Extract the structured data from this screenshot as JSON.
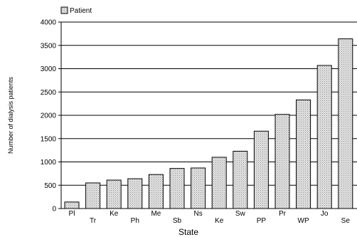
{
  "chart_data": {
    "type": "bar",
    "categories": [
      "Pl",
      "Tr",
      "Ke",
      "Ph",
      "Me",
      "Sb",
      "Ns",
      "Ke",
      "Sw",
      "PP",
      "Pr",
      "WP",
      "Jo",
      "Se"
    ],
    "series": [
      {
        "name": "Patient",
        "values": [
          140,
          550,
          610,
          640,
          730,
          860,
          870,
          1100,
          1230,
          1660,
          2020,
          2330,
          3070,
          3640
        ]
      }
    ],
    "title": "",
    "xlabel": "State",
    "ylabel": "Number of dialysis patients",
    "ylim": [
      0,
      4000
    ],
    "yticks": [
      0,
      500,
      1000,
      1500,
      2000,
      2500,
      3000,
      3500,
      4000
    ],
    "grid": "horizontal",
    "legend_position": "top-left",
    "colors": {
      "bar_fill": "#cfcfcf",
      "bar_stroke": "#000000"
    }
  }
}
